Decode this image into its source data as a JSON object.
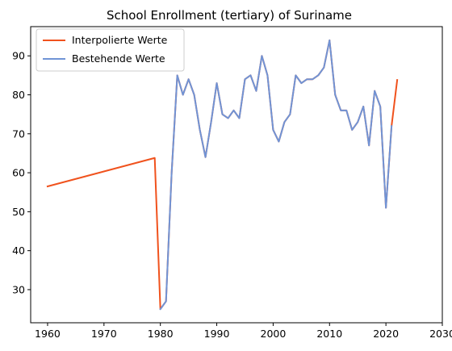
{
  "chart_data": {
    "type": "line",
    "title": "School Enrollment (tertiary) of Suriname",
    "xlabel": "",
    "ylabel": "",
    "xlim": [
      1957,
      2030
    ],
    "ylim": [
      21.5,
      97.5
    ],
    "xticks": [
      1960,
      1970,
      1980,
      1990,
      2000,
      2010,
      2020,
      2030
    ],
    "yticks": [
      30,
      40,
      50,
      60,
      70,
      80,
      90
    ],
    "grid": false,
    "legend_position": "top-left",
    "series": [
      {
        "name": "Interpolierte Werte",
        "color": "#f0521d",
        "x": [
          1960,
          1979,
          1980,
          1981,
          1982,
          1983,
          1984,
          1985,
          1986,
          1987,
          1988,
          1989,
          1990,
          1991,
          1992,
          1993,
          1994,
          1995,
          1996,
          1997,
          1998,
          1999,
          2000,
          2001,
          2002,
          2003,
          2004,
          2005,
          2006,
          2007,
          2008,
          2009,
          2010,
          2011,
          2012,
          2013,
          2014,
          2015,
          2016,
          2017,
          2018,
          2019,
          2020,
          2021,
          2022
        ],
        "y": [
          56.5,
          63.8,
          25,
          27,
          60,
          85,
          80,
          84,
          80,
          71,
          64,
          73,
          83,
          75,
          74,
          76,
          74,
          84,
          85,
          81,
          90,
          85,
          71,
          68,
          73,
          75,
          85,
          83,
          84,
          84,
          85,
          87,
          94,
          80,
          76,
          76,
          71,
          73,
          77,
          67,
          81,
          77,
          51,
          72,
          83.8
        ]
      },
      {
        "name": "Bestehende Werte",
        "color": "#7094d6",
        "x": [
          1980,
          1981,
          1982,
          1983,
          1984,
          1985,
          1986,
          1987,
          1988,
          1989,
          1990,
          1991,
          1992,
          1993,
          1994,
          1995,
          1996,
          1997,
          1998,
          1999,
          2000,
          2001,
          2002,
          2003,
          2004,
          2005,
          2006,
          2007,
          2008,
          2009,
          2010,
          2011,
          2012,
          2013,
          2014,
          2015,
          2016,
          2017,
          2018,
          2019,
          2020,
          2021
        ],
        "y": [
          25,
          27,
          60,
          85,
          80,
          84,
          80,
          71,
          64,
          73,
          83,
          75,
          74,
          76,
          74,
          84,
          85,
          81,
          90,
          85,
          71,
          68,
          73,
          75,
          85,
          83,
          84,
          84,
          85,
          87,
          94,
          80,
          76,
          76,
          71,
          73,
          77,
          67,
          81,
          77,
          51,
          72
        ]
      }
    ]
  }
}
